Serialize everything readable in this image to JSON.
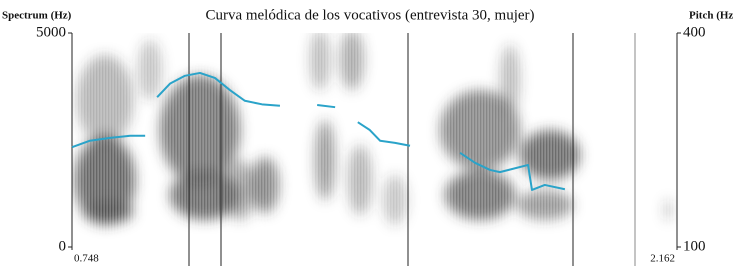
{
  "chart_data": {
    "type": "line",
    "title": "Curva melódica de los vocativos (entrevista 30, mujer)",
    "ylabel": "Spectrum (Hz)",
    "y2label": "Pitch (Hz",
    "ylim": [
      0,
      5000
    ],
    "yticks": [
      0,
      5000
    ],
    "y2lim": [
      100,
      400
    ],
    "y2ticks": [
      100,
      400
    ],
    "xlim": [
      0.748,
      2.162
    ],
    "xticks": [
      0.748,
      2.162
    ],
    "x": [
      0.748,
      0.79,
      0.837,
      0.884,
      0.919,
      null,
      0.947,
      0.977,
      1.012,
      1.047,
      1.082,
      1.117,
      1.152,
      1.192,
      1.234,
      null,
      1.321,
      1.363,
      null,
      1.416,
      1.444,
      1.468,
      1.503,
      1.538,
      null,
      1.655,
      1.69,
      1.725,
      1.748,
      1.814,
      1.823,
      1.853,
      1.9
    ],
    "series": [
      {
        "color": "#2aa3c9",
        "axis": "y2",
        "values": [
          240,
          249,
          253,
          256,
          256,
          null,
          310,
          329,
          340,
          344,
          337,
          320,
          305,
          300,
          298,
          null,
          299,
          296,
          null,
          275,
          264,
          249,
          246,
          242,
          null,
          232,
          218,
          208,
          205,
          215,
          180,
          187,
          181
        ]
      }
    ]
  }
}
